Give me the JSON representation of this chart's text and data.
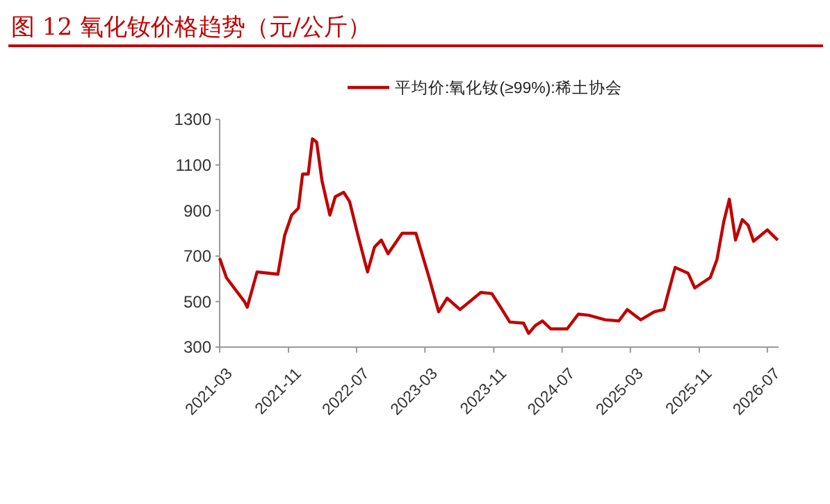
{
  "chart_data": {
    "type": "line",
    "title": "图 12 氧化钕价格趋势（元/公斤）",
    "x": [
      "2021-03-01",
      "2021-03-25",
      "2021-05-28",
      "2021-06-07",
      "2021-07-12",
      "2021-09-24",
      "2021-10-18",
      "2021-11-12",
      "2021-12-06",
      "2021-12-21",
      "2022-01-10",
      "2022-01-25",
      "2022-02-09",
      "2022-02-28",
      "2022-03-28",
      "2022-04-16",
      "2022-05-16",
      "2022-06-06",
      "2022-07-04",
      "2022-08-09",
      "2022-09-03",
      "2022-09-27",
      "2022-10-21",
      "2022-12-10",
      "2023-01-13",
      "2023-01-28",
      "2023-03-16",
      "2023-04-19",
      "2023-05-19",
      "2023-07-04",
      "2023-09-16",
      "2023-10-25",
      "2023-11-28",
      "2023-12-28",
      "2024-02-15",
      "2024-03-04",
      "2024-03-28",
      "2024-04-22",
      "2024-05-22",
      "2024-07-19",
      "2024-08-28",
      "2024-10-04",
      "2024-12-01",
      "2025-01-19",
      "2025-02-18",
      "2025-04-07",
      "2025-05-25",
      "2025-06-28",
      "2025-07-13",
      "2025-08-07",
      "2025-09-22",
      "2025-10-16",
      "2025-11-15",
      "2025-12-10",
      "2026-01-03",
      "2026-01-27",
      "2026-02-16",
      "2026-03-10",
      "2026-04-03",
      "2026-04-24",
      "2026-05-13",
      "2026-06-07",
      "2026-07-01",
      "2026-08-07"
    ],
    "series": [
      {
        "name": "平均价:氧化钕(≥99%):稀土协会",
        "color": "#c00000",
        "values": [
          690,
          605,
          500,
          475,
          630,
          620,
          790,
          880,
          910,
          1060,
          1060,
          1215,
          1200,
          1030,
          880,
          960,
          980,
          940,
          800,
          630,
          740,
          770,
          710,
          800,
          800,
          800,
          605,
          455,
          515,
          465,
          540,
          535,
          470,
          410,
          405,
          360,
          395,
          415,
          380,
          380,
          445,
          440,
          420,
          415,
          465,
          420,
          455,
          465,
          535,
          650,
          625,
          560,
          585,
          605,
          685,
          850,
          950,
          770,
          860,
          835,
          765,
          790,
          815,
          770
        ]
      }
    ],
    "xlim": [
      "2021-03-01",
      "2026-08-10"
    ],
    "xticks": [
      "2021-03",
      "2021-11",
      "2022-07",
      "2023-03",
      "2023-11",
      "2024-07",
      "2025-03",
      "2025-11",
      "2026-07"
    ],
    "ylim": [
      300,
      1300
    ],
    "yticks": [
      300,
      500,
      700,
      900,
      1100,
      1300
    ],
    "grid": false,
    "legend": "top",
    "marker": "none",
    "line_style": "solid"
  }
}
